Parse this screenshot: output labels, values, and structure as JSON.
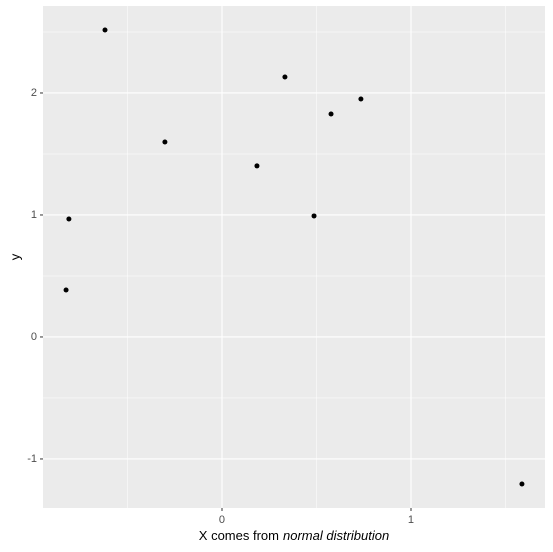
{
  "chart_data": {
    "type": "scatter",
    "xlabel": {
      "plain": "X comes from",
      "italic": "normal distribution"
    },
    "ylabel": "y",
    "x": [
      -0.619,
      -0.302,
      -0.81,
      -0.825,
      0.185,
      0.333,
      0.487,
      0.577,
      0.735,
      1.587
    ],
    "values": [
      2.516,
      1.598,
      0.967,
      0.385,
      1.402,
      2.131,
      0.992,
      1.828,
      1.951,
      -1.205
    ],
    "color": "#000000",
    "xlim": [
      -0.947,
      1.709
    ],
    "ylim": [
      -1.402,
      2.713
    ],
    "xticks": [
      0,
      1
    ],
    "yticks": [
      -1,
      0,
      1,
      2
    ],
    "xminor": [
      -0.5,
      0.5,
      1.5
    ],
    "yminor": [
      -0.5,
      0.5,
      1.5,
      2.5
    ],
    "grid": true
  }
}
